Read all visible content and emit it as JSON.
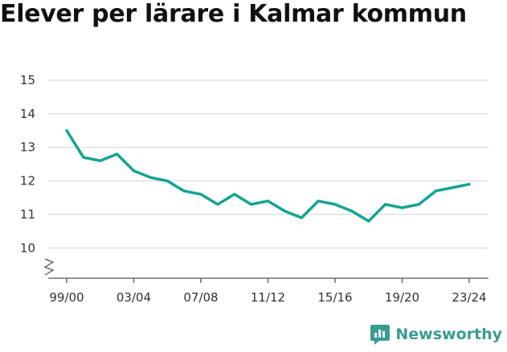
{
  "title": "Elever per lärare i Kalmar kommun",
  "brand": {
    "name": "Newsworthy",
    "color": "#3a9c8f",
    "icon": "newsworthy-logo-icon"
  },
  "chart_data": {
    "type": "line",
    "title": "Elever per lärare i Kalmar kommun",
    "xlabel": "",
    "ylabel": "",
    "ylim": [
      9.1,
      15
    ],
    "y_ticks": [
      10,
      11,
      12,
      13,
      14,
      15
    ],
    "y_axis_break": true,
    "grid": true,
    "line_color": "#16a394",
    "x_tick_labels": [
      "99/00",
      "03/04",
      "07/08",
      "11/12",
      "15/16",
      "19/20",
      "23/24"
    ],
    "x_tick_indices": [
      0,
      4,
      8,
      12,
      16,
      20,
      24
    ],
    "x": [
      "99/00",
      "00/01",
      "01/02",
      "02/03",
      "03/04",
      "04/05",
      "05/06",
      "06/07",
      "07/08",
      "08/09",
      "09/10",
      "10/11",
      "11/12",
      "12/13",
      "13/14",
      "14/15",
      "15/16",
      "16/17",
      "17/18",
      "18/19",
      "19/20",
      "20/21",
      "21/22",
      "22/23",
      "23/24"
    ],
    "series": [
      {
        "values": [
          13.5,
          12.7,
          12.6,
          12.8,
          12.3,
          12.1,
          12.0,
          11.7,
          11.6,
          11.3,
          11.6,
          11.3,
          11.4,
          11.1,
          10.9,
          11.4,
          11.3,
          11.1,
          10.8,
          11.3,
          11.2,
          11.3,
          11.7,
          11.8,
          11.9
        ]
      }
    ]
  }
}
